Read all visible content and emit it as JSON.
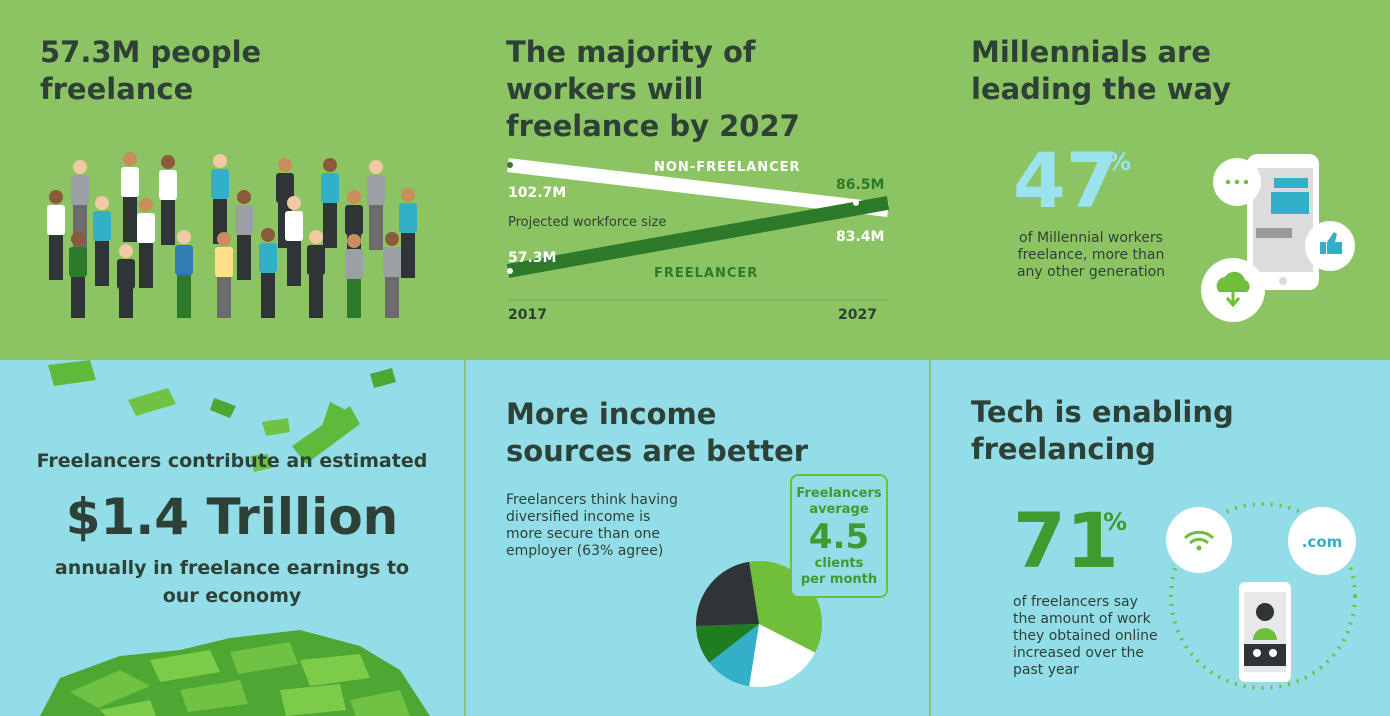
{
  "panels": {
    "freelance_count": {
      "title_line1": "57.3M people",
      "title_line2": "freelance"
    },
    "majority": {
      "title_line1": "The majority of",
      "title_line2": "workers will",
      "title_line3": "freelance by 2027"
    },
    "millennials": {
      "title_line1": "Millennials are",
      "title_line2": "leading the way",
      "stat": "47",
      "stat_unit": "%",
      "desc_line1": "of Millennial workers",
      "desc_line2": "freelance, more than",
      "desc_line3": "any other generation"
    },
    "economy": {
      "lead": "Freelancers contribute an estimated",
      "amount": "$1.4 Trillion",
      "tail_line1": "annually in freelance earnings to",
      "tail_line2": "our economy"
    },
    "income": {
      "title_line1": "More income",
      "title_line2": "sources are better",
      "desc_line1": "Freelancers think having",
      "desc_line2": "diversified income is",
      "desc_line3": "more secure than one",
      "desc_line4": "employer (63% agree)",
      "badge_line1": "Freelancers",
      "badge_line2": "average",
      "badge_value": "4.5",
      "badge_line3": "clients",
      "badge_line4": "per month"
    },
    "tech": {
      "title_line1": "Tech is enabling",
      "title_line2": "freelancing",
      "stat": "71",
      "stat_unit": "%",
      "desc_line1": "of freelancers say",
      "desc_line2": "the amount of work",
      "desc_line3": "they obtained online",
      "desc_line4": "increased over the",
      "desc_line5": "past year",
      "dotcom": ".com"
    }
  },
  "colors": {
    "green_bg": "#8dc463",
    "blue_bg": "#93dde8",
    "dark_green": "#2d7a2a",
    "text": "#2e4136",
    "bright_green": "#3f9a2f"
  },
  "icons": [
    "wifi-icon",
    "thumbs-up-icon",
    "cloud-download-icon",
    "chat-icon",
    "phone-icon",
    "person-icon"
  ],
  "chart_data": [
    {
      "type": "line",
      "ylabel": "Projected workforce size",
      "x": [
        "2017",
        "2027"
      ],
      "series": [
        {
          "name": "NON-FREELANCER",
          "values": [
            102.7,
            83.4
          ],
          "labels": [
            "102.7M",
            "83.4M"
          ]
        },
        {
          "name": "FREELANCER",
          "values": [
            57.3,
            86.5
          ],
          "labels": [
            "57.3M",
            "86.5M"
          ]
        }
      ]
    },
    {
      "type": "pie",
      "values": [
        35,
        20,
        12,
        10,
        23
      ],
      "colors": [
        "#6fbf3a",
        "#ffffff",
        "#33b0c8",
        "#1e7d1e",
        "#2f3536"
      ]
    }
  ]
}
